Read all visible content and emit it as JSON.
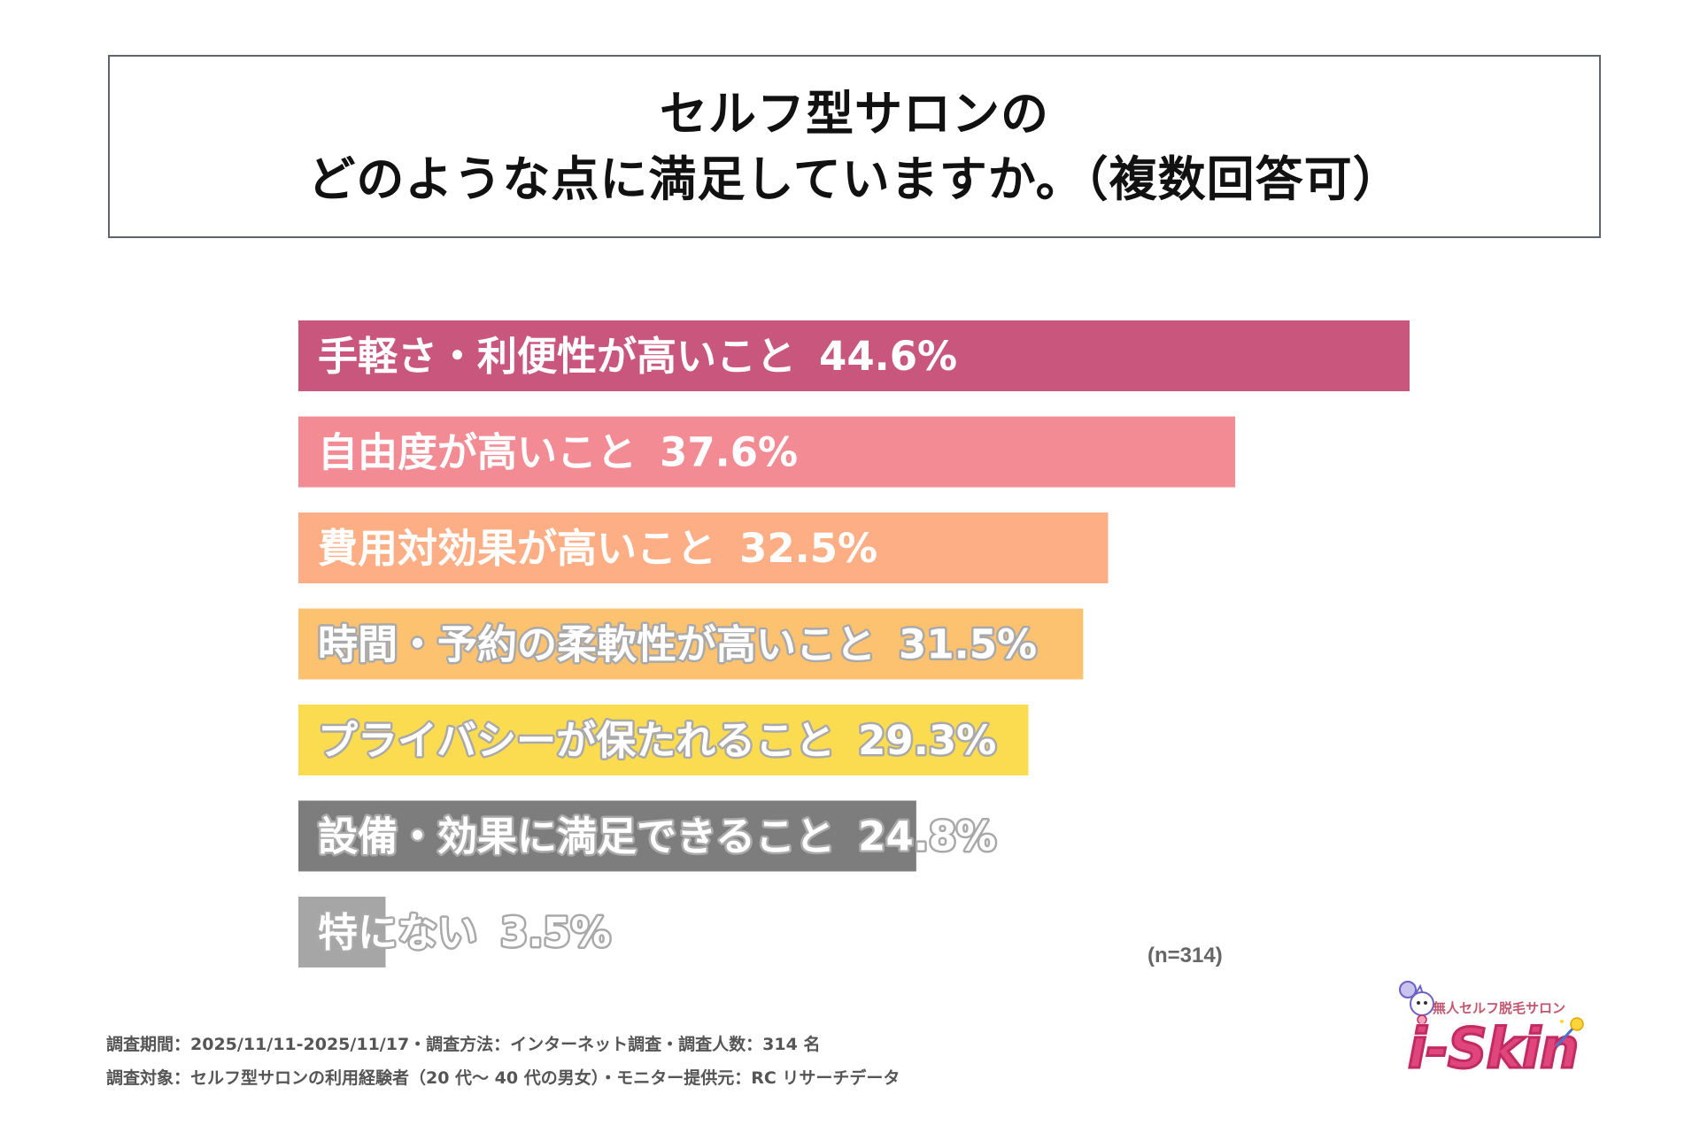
{
  "title": {
    "line1": "セルフ型サロンの",
    "line2": "どのような点に満足していますか。（複数回答可）"
  },
  "chart_data": {
    "type": "bar",
    "orientation": "horizontal",
    "title": "セルフ型サロンのどのような点に満足していますか。（複数回答可）",
    "categories": [
      "手軽さ・利便性が高いこと",
      "自由度が高いこと",
      "費用対効果が高いこと",
      "時間・予約の柔軟性が高いこと",
      "プライバシーが保たれること",
      "設備・効果に満足できること",
      "特にない"
    ],
    "values": [
      44.6,
      37.6,
      32.5,
      31.5,
      29.3,
      24.8,
      3.5
    ],
    "value_labels": [
      "44.6%",
      "37.6%",
      "32.5%",
      "31.5%",
      "29.3%",
      "24.8%",
      "3.5%"
    ],
    "colors": [
      "#c8567d",
      "#f28b93",
      "#fdae84",
      "#fdc270",
      "#fbdb50",
      "#7d7d7d",
      "#a6a6a6"
    ],
    "unit": "%",
    "xlim": [
      0,
      44.6
    ],
    "xlabel": "",
    "ylabel": ""
  },
  "sample_size": "(n=314)",
  "footer": {
    "line1": "調査期間：2025/11/11-2025/11/17・調査方法：インターネット調査・調査人数：314 名",
    "line2": "調査対象：セルフ型サロンの利用経験者（20 代〜 40 代の男女）・モニター提供元：RC リサーチデータ"
  },
  "logo": {
    "tagline": "無人セルフ脱毛サロン",
    "word": "i-Skin"
  }
}
